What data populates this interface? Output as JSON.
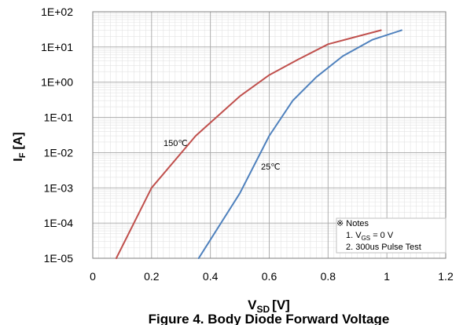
{
  "chart_data": {
    "type": "line",
    "title": "Figure 4. Body Diode Forward Voltage",
    "xlabel": "V",
    "xlabel_sub": "SD",
    "xlabel_unit": "[V]",
    "ylabel": "I",
    "ylabel_sub": "F",
    "ylabel_unit": "[A]",
    "xlim": [
      0,
      1.2
    ],
    "ylim_exp": [
      -5,
      2
    ],
    "y_scale": "log",
    "grid": true,
    "x_ticks": [
      "0",
      "0.2",
      "0.4",
      "0.6",
      "0.8",
      "1",
      "1.2"
    ],
    "y_ticks": [
      "1E-05",
      "1E-04",
      "1E-03",
      "1E-02",
      "1E-01",
      "1E+00",
      "1E+01",
      "1E+02"
    ],
    "series": [
      {
        "name": "150℃",
        "color": "#C0504D",
        "points": [
          [
            0.08,
            1e-05
          ],
          [
            0.2,
            0.001
          ],
          [
            0.35,
            0.03
          ],
          [
            0.5,
            0.4
          ],
          [
            0.6,
            1.6
          ],
          [
            0.7,
            4.5
          ],
          [
            0.8,
            12
          ],
          [
            0.9,
            20
          ],
          [
            0.98,
            30
          ]
        ]
      },
      {
        "name": "25℃",
        "color": "#4F81BD",
        "points": [
          [
            0.36,
            1e-05
          ],
          [
            0.5,
            0.0007
          ],
          [
            0.6,
            0.03
          ],
          [
            0.68,
            0.3
          ],
          [
            0.76,
            1.4
          ],
          [
            0.85,
            5.5
          ],
          [
            0.95,
            16
          ],
          [
            1.05,
            30
          ]
        ]
      }
    ],
    "notes": {
      "heading": "※ Notes",
      "line1_prefix": "1. V",
      "line1_sub": "GS",
      "line1_suffix": " = 0 V",
      "line2": "2. 300us Pulse Test"
    }
  }
}
